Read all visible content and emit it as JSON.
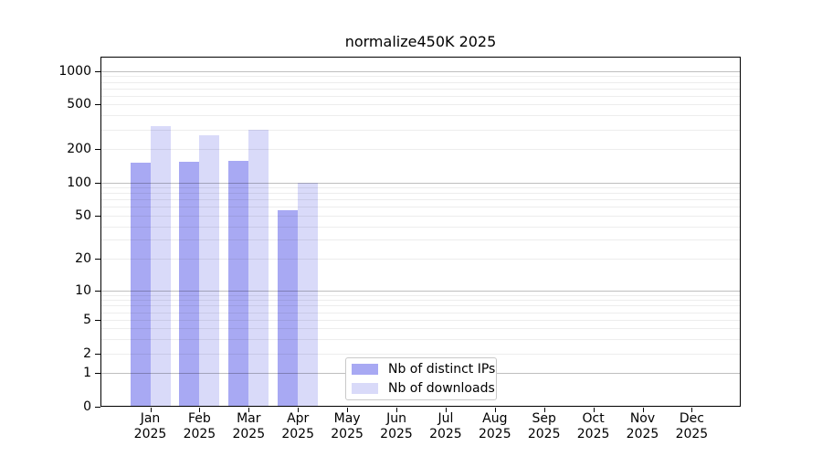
{
  "title": "normalize450K 2025",
  "legend": {
    "items": [
      {
        "label": "Nb of distinct IPs",
        "color": "#a8a9f3"
      },
      {
        "label": "Nb of downloads",
        "color": "#d9daf9"
      }
    ]
  },
  "chart_data": {
    "type": "bar",
    "title": "normalize450K 2025",
    "categories": [
      {
        "month": "Jan",
        "year": "2025"
      },
      {
        "month": "Feb",
        "year": "2025"
      },
      {
        "month": "Mar",
        "year": "2025"
      },
      {
        "month": "Apr",
        "year": "2025"
      },
      {
        "month": "May",
        "year": "2025"
      },
      {
        "month": "Jun",
        "year": "2025"
      },
      {
        "month": "Jul",
        "year": "2025"
      },
      {
        "month": "Aug",
        "year": "2025"
      },
      {
        "month": "Sep",
        "year": "2025"
      },
      {
        "month": "Oct",
        "year": "2025"
      },
      {
        "month": "Nov",
        "year": "2025"
      },
      {
        "month": "Dec",
        "year": "2025"
      }
    ],
    "series": [
      {
        "name": "Nb of distinct IPs",
        "color": "#a8a9f3",
        "values": [
          150,
          155,
          157,
          56,
          null,
          null,
          null,
          null,
          null,
          null,
          null,
          null
        ]
      },
      {
        "name": "Nb of downloads",
        "color": "#d9daf9",
        "values": [
          320,
          265,
          295,
          100,
          null,
          null,
          null,
          null,
          null,
          null,
          null,
          null
        ]
      }
    ],
    "xlabel": "",
    "ylabel": "",
    "y_scale": "log1p",
    "y_ticks": [
      0,
      1,
      2,
      5,
      10,
      20,
      50,
      100,
      200,
      500,
      1000
    ],
    "y_major_gridlines": [
      1,
      10,
      100,
      1000
    ],
    "y_minor_gridlines": [
      2,
      3,
      4,
      5,
      6,
      7,
      8,
      9,
      20,
      30,
      40,
      50,
      60,
      70,
      80,
      90,
      200,
      300,
      400,
      500,
      600,
      700,
      800,
      900
    ],
    "ylim": [
      0,
      1340
    ],
    "grid": "both",
    "legend_position": "lower-center"
  }
}
